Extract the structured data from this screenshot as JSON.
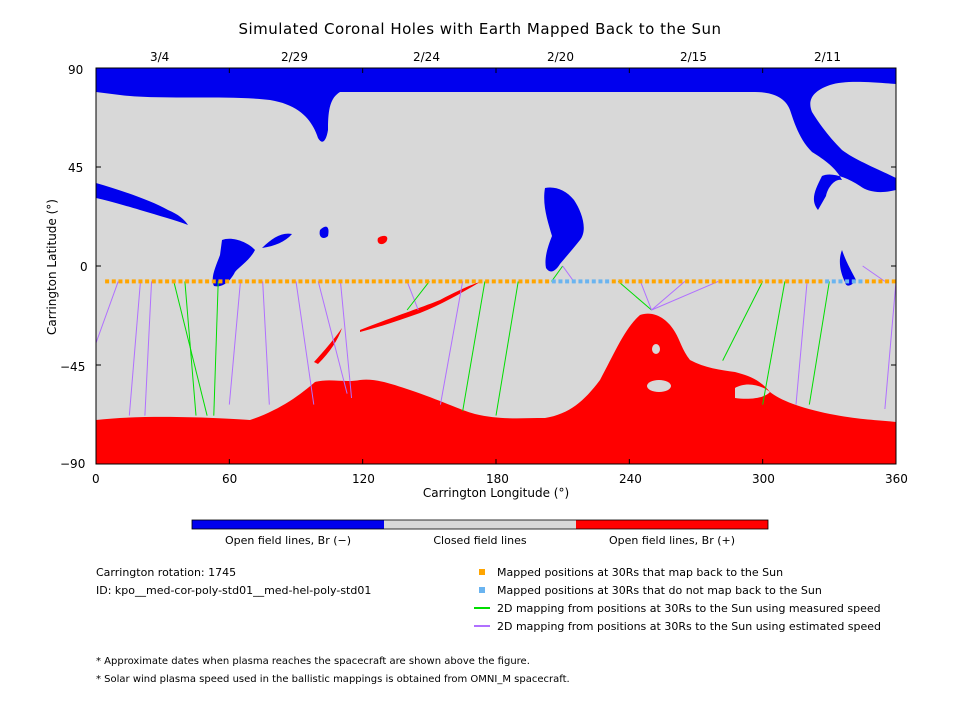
{
  "title": "Simulated Coronal Holes with Earth Mapped Back to the Sun",
  "top_dates": [
    "3/4",
    "2/29",
    "2/24",
    "2/20",
    "2/15",
    "2/11"
  ],
  "x_ticks": [
    "0",
    "60",
    "120",
    "180",
    "240",
    "300",
    "360"
  ],
  "y_ticks": [
    "90",
    "45",
    "0",
    "−45",
    "−90"
  ],
  "xlabel": "Carrington Longitude (°)",
  "ylabel": "Carrington Latitude (°)",
  "colorbar": {
    "labels": [
      "Open field lines, Br (−)",
      "Closed field lines",
      "Open field lines, Br (+)"
    ],
    "colors": [
      "#0000ee",
      "#d8d8d8",
      "#ff0000"
    ]
  },
  "info": {
    "rotation": "Carrington rotation: 1745",
    "id": "ID: kpo__med-cor-poly-std01__med-hel-poly-std01"
  },
  "legend": [
    {
      "label": "Mapped positions at 30Rs that map back to the Sun",
      "color": "#ffa500",
      "kind": "square"
    },
    {
      "label": "Mapped positions at 30Rs that do not map back to the Sun",
      "color": "#6ab4f0",
      "kind": "square"
    },
    {
      "label": "2D mapping from positions at 30Rs to the Sun using measured speed",
      "color": "#00dd00",
      "kind": "line"
    },
    {
      "label": "2D mapping from positions at 30Rs to the Sun using estimated speed",
      "color": "#b070ff",
      "kind": "line"
    }
  ],
  "footnotes": [
    "* Approximate dates when plasma reaches the spacecraft are shown above the figure.",
    "* Solar wind plasma speed used in the ballistic mappings is obtained from OMNI_M spacecraft."
  ],
  "colors": {
    "negative_open": "#0000ee",
    "closed": "#d8d8d8",
    "positive_open": "#ff0000"
  },
  "chart_data": {
    "type": "map",
    "x_range": [
      0,
      360
    ],
    "y_range": [
      -90,
      90
    ],
    "x_tick_values": [
      0,
      60,
      120,
      180,
      240,
      300,
      360
    ],
    "y_tick_values": [
      90,
      45,
      0,
      -45,
      -90
    ],
    "top_date_longitudes": [
      30,
      90,
      150,
      210,
      270,
      330
    ],
    "earth_latitude": -7,
    "mapping_lines": [
      {
        "from_lon": 10,
        "to": [
          0,
          -35
        ],
        "kind": "estimated"
      },
      {
        "from_lon": 20,
        "to": [
          15,
          -68
        ],
        "kind": "estimated"
      },
      {
        "from_lon": 25,
        "to": [
          22,
          -68
        ],
        "kind": "estimated"
      },
      {
        "from_lon": 35,
        "to": [
          50,
          -68
        ],
        "kind": "measured"
      },
      {
        "from_lon": 40,
        "to": [
          45,
          -68
        ],
        "kind": "measured"
      },
      {
        "from_lon": 55,
        "to": [
          53,
          -68
        ],
        "kind": "measured"
      },
      {
        "from_lon": 65,
        "to": [
          60,
          -63
        ],
        "kind": "estimated"
      },
      {
        "from_lon": 75,
        "to": [
          78,
          -63
        ],
        "kind": "estimated"
      },
      {
        "from_lon": 90,
        "to": [
          98,
          -63
        ],
        "kind": "estimated"
      },
      {
        "from_lon": 100,
        "to": [
          113,
          -58
        ],
        "kind": "estimated"
      },
      {
        "from_lon": 110,
        "to": [
          115,
          -60
        ],
        "kind": "estimated"
      },
      {
        "from_lon": 140,
        "to": [
          145,
          -20
        ],
        "kind": "estimated"
      },
      {
        "from_lon": 150,
        "to": [
          140,
          -20
        ],
        "kind": "measured"
      },
      {
        "from_lon": 165,
        "to": [
          155,
          -63
        ],
        "kind": "estimated"
      },
      {
        "from_lon": 175,
        "to": [
          165,
          -66
        ],
        "kind": "measured"
      },
      {
        "from_lon": 190,
        "to": [
          180,
          -68
        ],
        "kind": "measured"
      },
      {
        "from_lon": 205,
        "to": [
          210,
          0
        ],
        "kind": "measured"
      },
      {
        "from_lon": 215,
        "to": [
          210,
          0
        ],
        "kind": "estimated"
      },
      {
        "from_lon": 235,
        "to": [
          250,
          -20
        ],
        "kind": "measured"
      },
      {
        "from_lon": 245,
        "to": [
          250,
          -20
        ],
        "kind": "estimated"
      },
      {
        "from_lon": 265,
        "to": [
          250,
          -20
        ],
        "kind": "estimated"
      },
      {
        "from_lon": 280,
        "to": [
          250,
          -20
        ],
        "kind": "estimated"
      },
      {
        "from_lon": 300,
        "to": [
          282,
          -43
        ],
        "kind": "measured"
      },
      {
        "from_lon": 310,
        "to": [
          300,
          -63
        ],
        "kind": "measured"
      },
      {
        "from_lon": 320,
        "to": [
          315,
          -63
        ],
        "kind": "estimated"
      },
      {
        "from_lon": 330,
        "to": [
          321,
          -63
        ],
        "kind": "measured"
      },
      {
        "from_lon": 355,
        "to": [
          345,
          0
        ],
        "kind": "estimated"
      },
      {
        "from_lon": 360,
        "to": [
          355,
          -65
        ],
        "kind": "estimated"
      }
    ]
  }
}
